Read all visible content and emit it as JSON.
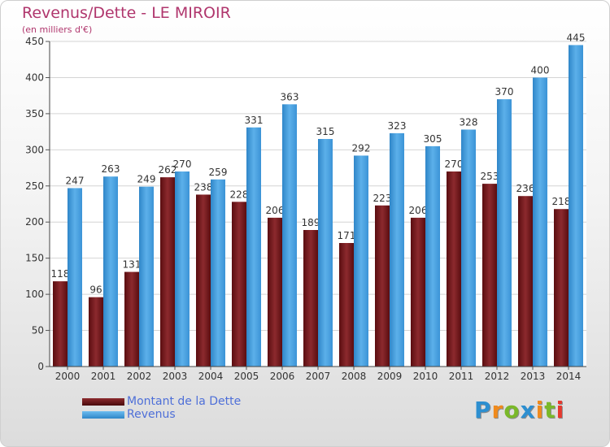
{
  "chart_data": {
    "type": "bar",
    "title": "Revenus/Dette - LE MIROIR",
    "subtitle": "(en milliers d'€)",
    "categories": [
      "2000",
      "2001",
      "2002",
      "2003",
      "2004",
      "2005",
      "2006",
      "2007",
      "2008",
      "2009",
      "2010",
      "2011",
      "2012",
      "2013",
      "2014"
    ],
    "series": [
      {
        "name": "Montant de la Dette",
        "color": "#7a1a1e",
        "values": [
          118,
          96,
          131,
          262,
          238,
          228,
          206,
          189,
          171,
          223,
          206,
          270,
          253,
          236,
          218
        ]
      },
      {
        "name": "Revenus",
        "color": "#4ba4e4",
        "values": [
          247,
          263,
          249,
          270,
          259,
          331,
          363,
          315,
          292,
          323,
          305,
          328,
          370,
          400,
          445
        ]
      }
    ],
    "ylim": [
      0,
      450
    ],
    "yticks": [
      0,
      50,
      100,
      150,
      200,
      250,
      300,
      350,
      400,
      450
    ],
    "grid": true,
    "legend_position": "bottom-left"
  },
  "brand": {
    "letters": [
      "P",
      "r",
      "o",
      "x",
      "i",
      "t",
      "i"
    ],
    "colors": [
      "#2d8fd0",
      "#f08a1c",
      "#7ab829",
      "#2d8fd0",
      "#f08a1c",
      "#7ab829",
      "#e6392e"
    ]
  }
}
